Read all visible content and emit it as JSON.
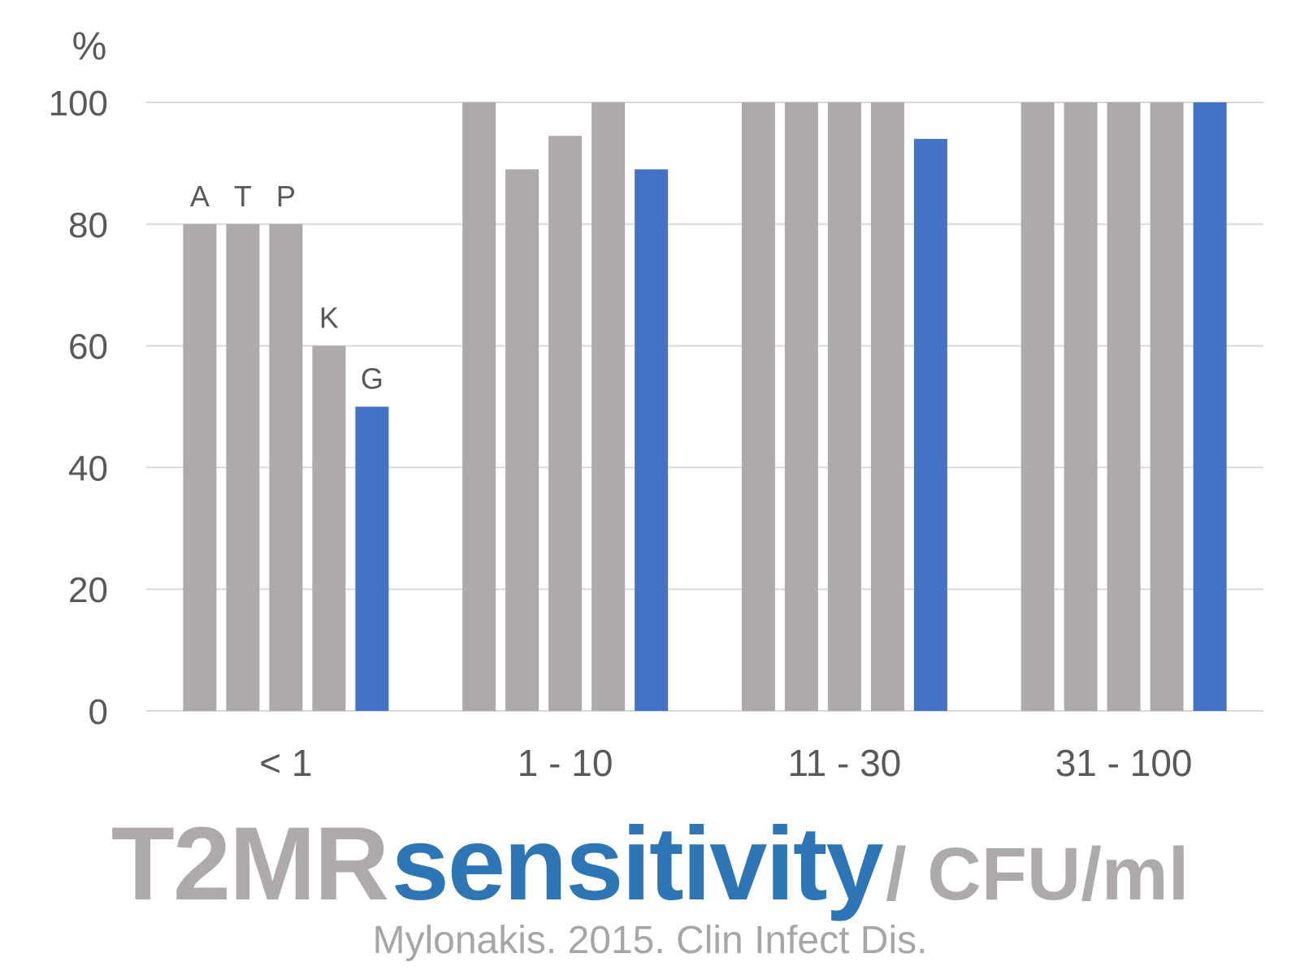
{
  "chart_data": {
    "type": "bar",
    "unit_label": "%",
    "ylim": [
      0,
      100
    ],
    "yticks": [
      0,
      20,
      40,
      60,
      80,
      100
    ],
    "grid": true,
    "categories": [
      "< 1",
      "1 - 10",
      "11 - 30",
      "31 - 100"
    ],
    "series": [
      {
        "name": "A",
        "values": [
          80,
          100,
          100,
          100
        ]
      },
      {
        "name": "T",
        "values": [
          80,
          89,
          100,
          100
        ]
      },
      {
        "name": "P",
        "values": [
          80,
          94.5,
          100,
          100
        ]
      },
      {
        "name": "K",
        "values": [
          60,
          100,
          100,
          100
        ]
      },
      {
        "name": "G",
        "values": [
          50,
          89,
          94,
          100
        ]
      }
    ],
    "colors": {
      "grey_bar": "#aeaaaa",
      "blue_bar": "#4472c4",
      "gridline": "#d9d9d9",
      "axis_text": "#595959"
    }
  },
  "headline": {
    "part1": "T2MR",
    "part2": "sensitivity",
    "part3": "/ CFU/ml"
  },
  "citation": "Mylonakis. 2015. Clin Infect Dis."
}
